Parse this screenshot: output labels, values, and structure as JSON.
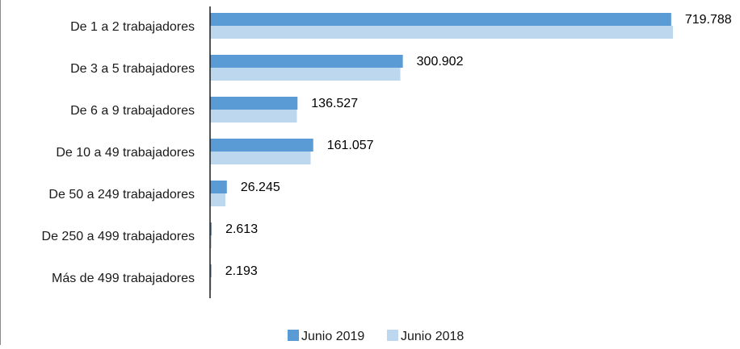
{
  "chart_data": {
    "type": "bar",
    "orientation": "horizontal",
    "categories": [
      "De 1 a 2 trabajadores",
      "De 3 a 5 trabajadores",
      "De 6 a 9 trabajadores",
      "De 10 a 49 trabajadores",
      "De  50 a 249 trabajadores",
      "De 250 a 499 trabajadores",
      "Más de 499 trabajadores"
    ],
    "series": [
      {
        "name": "Junio 2019",
        "color": "#5b9bd5",
        "values": [
          719788,
          300902,
          136527,
          161057,
          26245,
          2613,
          2193
        ]
      },
      {
        "name": "Junio 2018",
        "color": "#bdd7ee",
        "values": [
          722500,
          297000,
          135500,
          157000,
          24000,
          2450,
          2050
        ]
      }
    ],
    "data_labels": [
      "719.788",
      "300.902",
      "136.527",
      "161.057",
      "26.245",
      "2.613",
      "2.193"
    ],
    "title": "",
    "xlabel": "",
    "ylabel": "",
    "xlim": [
      0,
      725000
    ],
    "grid": false,
    "legend_position": "bottom"
  }
}
